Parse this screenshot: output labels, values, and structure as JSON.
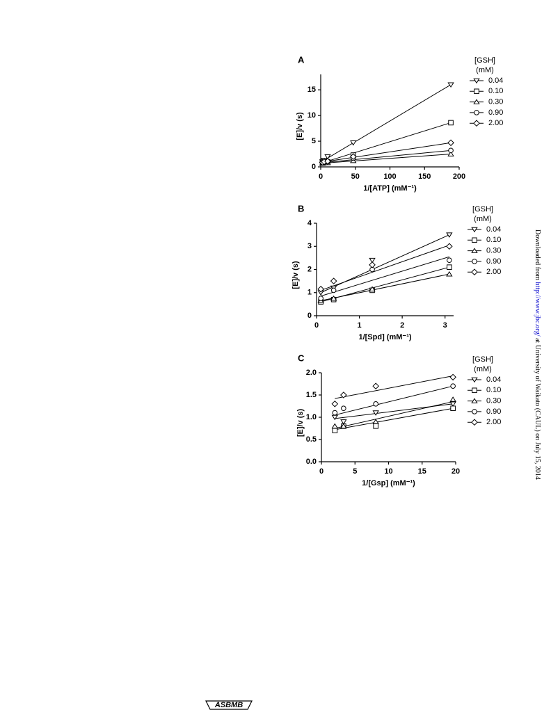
{
  "page": {
    "download_prefix": "Downloaded from ",
    "download_link": "http://www.jbc.org/",
    "download_suffix": " at University of Waikato (CAUL) on July 15, 2014",
    "logo": "ASBMB"
  },
  "chart_data": [
    {
      "type": "scatter",
      "title": "A",
      "xlabel": "1/[ATP] (mM⁻¹)",
      "ylabel": "[E]/v (s)",
      "legend_title": [
        "[GSH]",
        "(mM)"
      ],
      "x": [
        2.5,
        5,
        10,
        47,
        188
      ],
      "xlim": [
        0,
        200
      ],
      "xticks": [
        0,
        50,
        100,
        150,
        200
      ],
      "ylim": [
        0,
        18
      ],
      "yticks": [
        0,
        5,
        10,
        15
      ],
      "series": [
        {
          "name": "0.04",
          "color": "#000000",
          "marker": "triangle-down",
          "values": [
            1.0,
            1.3,
            2.0,
            4.7,
            16.0
          ],
          "fit_x": [
            0,
            188
          ],
          "fit_y": [
            0.9,
            16.0
          ]
        },
        {
          "name": "0.10",
          "color": "#000000",
          "marker": "square",
          "values": [
            0.8,
            0.9,
            1.0,
            2.3,
            8.6
          ],
          "fit_x": [
            0,
            188
          ],
          "fit_y": [
            0.7,
            8.6
          ]
        },
        {
          "name": "0.30",
          "color": "#000000",
          "marker": "triangle-up",
          "values": [
            0.7,
            0.8,
            0.8,
            1.2,
            2.5
          ],
          "fit_x": [
            0,
            188
          ],
          "fit_y": [
            0.7,
            2.5
          ]
        },
        {
          "name": "0.90",
          "color": "#000000",
          "marker": "circle",
          "values": [
            0.8,
            0.9,
            1.0,
            1.7,
            3.2
          ],
          "fit_x": [
            0,
            188
          ],
          "fit_y": [
            0.8,
            3.2
          ]
        },
        {
          "name": "2.00",
          "color": "#000000",
          "marker": "diamond",
          "values": [
            0.9,
            1.0,
            1.1,
            2.0,
            4.7
          ],
          "fit_x": [
            0,
            188
          ],
          "fit_y": [
            0.9,
            4.7
          ]
        }
      ]
    },
    {
      "type": "scatter",
      "title": "B",
      "xlabel": "1/[Spd] (mM⁻¹)",
      "ylabel": "[E]/v (s)",
      "legend_title": [
        "[GSH]",
        "(mM)"
      ],
      "x": [
        0.1,
        0.4,
        1.3,
        3.1
      ],
      "xlim": [
        0,
        3.2
      ],
      "xticks": [
        0,
        1,
        2,
        3
      ],
      "ylim": [
        0,
        4
      ],
      "yticks": [
        0,
        1,
        2,
        3,
        4
      ],
      "series": [
        {
          "name": "0.04",
          "color": "#000000",
          "marker": "triangle-down",
          "values": [
            1.0,
            1.2,
            2.4,
            3.5
          ],
          "fit_x": [
            0.1,
            3.1
          ],
          "fit_y": [
            1.0,
            3.5
          ]
        },
        {
          "name": "0.10",
          "color": "#000000",
          "marker": "square",
          "values": [
            0.6,
            0.7,
            1.1,
            2.1
          ],
          "fit_x": [
            0.1,
            3.1
          ],
          "fit_y": [
            0.6,
            2.1
          ]
        },
        {
          "name": "0.30",
          "color": "#000000",
          "marker": "triangle-up",
          "values": [
            0.65,
            0.75,
            1.15,
            1.8
          ],
          "fit_x": [
            0.1,
            3.1
          ],
          "fit_y": [
            0.65,
            1.8
          ]
        },
        {
          "name": "0.90",
          "color": "#000000",
          "marker": "circle",
          "values": [
            0.75,
            1.1,
            2.0,
            2.4
          ],
          "fit_x": [
            0.1,
            3.1
          ],
          "fit_y": [
            0.85,
            2.55
          ]
        },
        {
          "name": "2.00",
          "color": "#000000",
          "marker": "diamond",
          "values": [
            1.15,
            1.5,
            2.2,
            3.0
          ],
          "fit_x": [
            0.1,
            3.1
          ],
          "fit_y": [
            1.1,
            3.05
          ]
        }
      ]
    },
    {
      "type": "scatter",
      "title": "C",
      "xlabel": "1/[Gsp] (mM⁻¹)",
      "ylabel": "[E]/v (s)",
      "legend_title": [
        "[GSH]",
        "(mM)"
      ],
      "x": [
        2,
        3.3,
        8.1,
        19.6
      ],
      "xlim": [
        0,
        20
      ],
      "xticks": [
        0,
        5,
        10,
        15,
        20
      ],
      "ylim": [
        0,
        2.0
      ],
      "yticks": [
        {
          "value": 0,
          "label": "0.0"
        },
        0.5,
        {
          "value": 1,
          "label": "1.0"
        },
        1.5,
        {
          "value": 2,
          "label": "2.0"
        }
      ],
      "series": [
        {
          "name": "0.04",
          "color": "#000000",
          "marker": "triangle-down",
          "values": [
            1.0,
            0.9,
            1.1,
            1.3
          ],
          "fit_x": [
            2,
            19.6
          ],
          "fit_y": [
            0.97,
            1.3
          ]
        },
        {
          "name": "0.10",
          "color": "#000000",
          "marker": "square",
          "values": [
            0.7,
            0.8,
            0.8,
            1.2
          ],
          "fit_x": [
            2,
            19.6
          ],
          "fit_y": [
            0.72,
            1.2
          ]
        },
        {
          "name": "0.30",
          "color": "#000000",
          "marker": "triangle-up",
          "values": [
            0.8,
            0.8,
            0.9,
            1.4
          ],
          "fit_x": [
            2,
            19.6
          ],
          "fit_y": [
            0.75,
            1.35
          ]
        },
        {
          "name": "0.90",
          "color": "#000000",
          "marker": "circle",
          "values": [
            1.1,
            1.2,
            1.3,
            1.7
          ],
          "fit_x": [
            2,
            19.6
          ],
          "fit_y": [
            1.05,
            1.7
          ]
        },
        {
          "name": "2.00",
          "color": "#000000",
          "marker": "diamond",
          "values": [
            1.3,
            1.5,
            1.7,
            1.9
          ],
          "fit_x": [
            2,
            19.6
          ],
          "fit_y": [
            1.42,
            1.93
          ]
        }
      ]
    }
  ]
}
